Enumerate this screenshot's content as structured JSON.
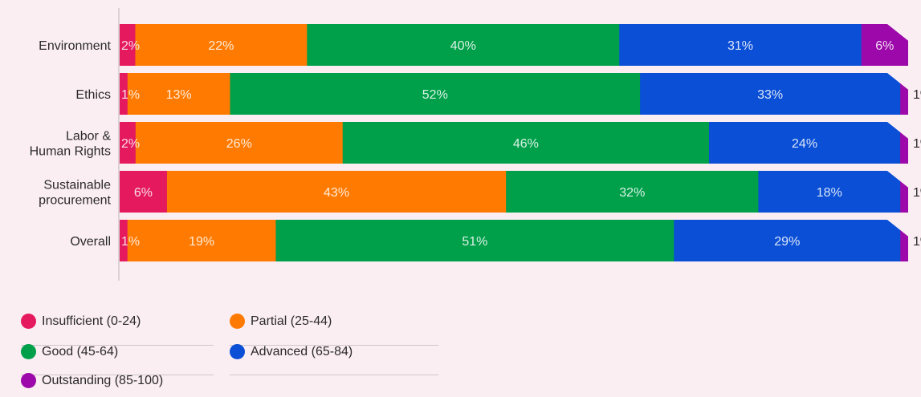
{
  "chart_data": {
    "type": "bar",
    "orientation": "horizontal",
    "stacked": true,
    "normalized": true,
    "categories": [
      "Environment",
      "Ethics",
      "Labor &\nHuman Rights",
      "Sustainable\nprocurement",
      "Overall"
    ],
    "series": [
      {
        "name": "Insufficient (0-24)",
        "color": "#e5195e",
        "values": [
          2,
          1,
          2,
          6,
          1
        ]
      },
      {
        "name": "Partial (25-44)",
        "color": "#ff7a00",
        "values": [
          22,
          13,
          26,
          43,
          19
        ]
      },
      {
        "name": "Good (45-64)",
        "color": "#00a04a",
        "values": [
          40,
          52,
          46,
          32,
          51
        ]
      },
      {
        "name": "Advanced (65-84)",
        "color": "#0a4fd6",
        "values": [
          31,
          33,
          24,
          18,
          29
        ]
      },
      {
        "name": "Outstanding (85-100)",
        "color": "#9c08a9",
        "values": [
          6,
          1,
          1,
          1,
          1
        ]
      }
    ],
    "value_suffix": "%",
    "xlim": [
      0,
      100
    ],
    "grid": false,
    "legend_position": "bottom-left"
  }
}
